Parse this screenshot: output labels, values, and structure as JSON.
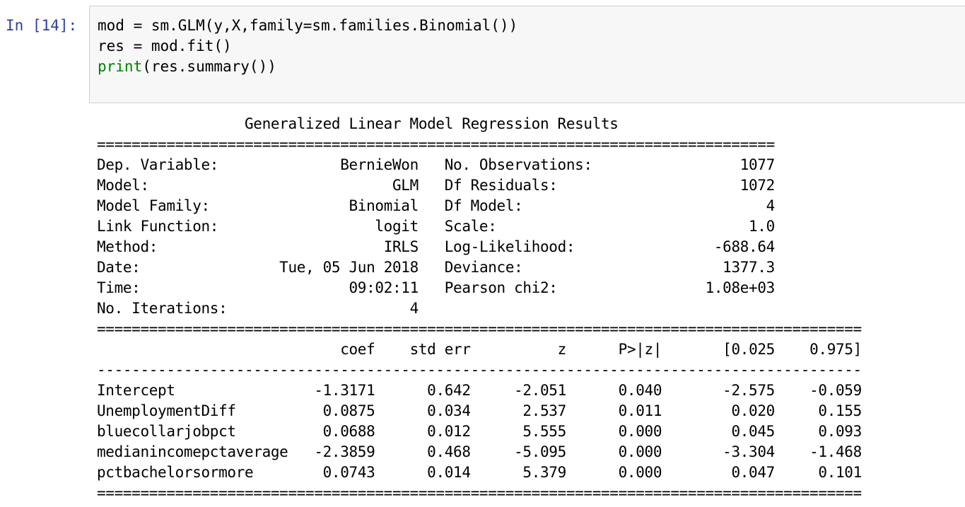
{
  "cell": {
    "prompt": "In [14]:",
    "code_lines": [
      {
        "segments": [
          {
            "text": "mod = sm.GLM(y,X,family=sm.families.Binomial())",
            "kind": "plain"
          }
        ]
      },
      {
        "segments": [
          {
            "text": "res = mod.fit()",
            "kind": "plain"
          }
        ]
      },
      {
        "segments": [
          {
            "text": "print",
            "kind": "builtin"
          },
          {
            "text": "(res.summary())",
            "kind": "plain"
          }
        ]
      }
    ]
  },
  "output": {
    "title": "Generalized Linear Model Regression Results",
    "info_rows": [
      {
        "left_label": "Dep. Variable:",
        "left_value": "BernieWon",
        "right_label": "No. Observations:",
        "right_value": "1077"
      },
      {
        "left_label": "Model:",
        "left_value": "GLM",
        "right_label": "Df Residuals:",
        "right_value": "1072"
      },
      {
        "left_label": "Model Family:",
        "left_value": "Binomial",
        "right_label": "Df Model:",
        "right_value": "4"
      },
      {
        "left_label": "Link Function:",
        "left_value": "logit",
        "right_label": "Scale:",
        "right_value": "1.0"
      },
      {
        "left_label": "Method:",
        "left_value": "IRLS",
        "right_label": "Log-Likelihood:",
        "right_value": "-688.64"
      },
      {
        "left_label": "Date:",
        "left_value": "Tue, 05 Jun 2018",
        "right_label": "Deviance:",
        "right_value": "1377.3"
      },
      {
        "left_label": "Time:",
        "left_value": "09:02:11",
        "right_label": "Pearson chi2:",
        "right_value": "1.08e+03"
      },
      {
        "left_label": "No. Iterations:",
        "left_value": "4",
        "right_label": "",
        "right_value": ""
      }
    ],
    "coef_headers": [
      "coef",
      "std err",
      "z",
      "P>|z|",
      "[0.025",
      "0.975]"
    ],
    "coef_rows": [
      {
        "name": "Intercept",
        "values": [
          "-1.3171",
          "0.642",
          "-2.051",
          "0.040",
          "-2.575",
          "-0.059"
        ]
      },
      {
        "name": "UnemploymentDiff",
        "values": [
          "0.0875",
          "0.034",
          "2.537",
          "0.011",
          "0.020",
          "0.155"
        ]
      },
      {
        "name": "bluecollarjobpct",
        "values": [
          "0.0688",
          "0.012",
          "5.555",
          "0.000",
          "0.045",
          "0.093"
        ]
      },
      {
        "name": "medianincomepctaverage",
        "values": [
          "-2.3859",
          "0.468",
          "-5.095",
          "0.000",
          "-3.304",
          "-1.468"
        ]
      },
      {
        "name": "pctbachelorsormore",
        "values": [
          "0.0743",
          "0.014",
          "5.379",
          "0.000",
          "0.047",
          "0.101"
        ]
      }
    ]
  },
  "colors": {
    "prompt": "#303f9f",
    "builtin_keyword": "#008000",
    "input_background": "#f7f7f7",
    "input_border": "#cfcfcf"
  }
}
